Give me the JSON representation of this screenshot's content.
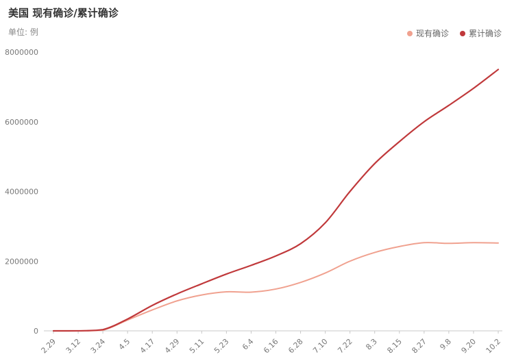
{
  "header": {
    "title": "美国 现有确诊/累计确诊",
    "unit": "单位: 例"
  },
  "chart_data": {
    "type": "line",
    "categories": [
      "2.29",
      "3.12",
      "3.24",
      "4.5",
      "4.17",
      "4.29",
      "5.11",
      "5.23",
      "6.4",
      "6.16",
      "6.28",
      "7.10",
      "7.22",
      "8.3",
      "8.15",
      "8.27",
      "9.8",
      "9.20",
      "10.2"
    ],
    "ylim": [
      0,
      8000000
    ],
    "y_ticks": [
      "0",
      "2000000",
      "4000000",
      "6000000",
      "8000000"
    ],
    "y_tick_values": [
      0,
      2000000,
      4000000,
      6000000,
      8000000
    ],
    "legend_position": "top-right",
    "grid": false,
    "series": [
      {
        "name": "现有确诊",
        "color": "#f0a18f",
        "values": [
          0,
          1000,
          20000,
          310000,
          600000,
          860000,
          1030000,
          1120000,
          1110000,
          1200000,
          1390000,
          1660000,
          2000000,
          2250000,
          2420000,
          2530000,
          2510000,
          2530000,
          2520000
        ]
      },
      {
        "name": "累计确诊",
        "color": "#c0393b",
        "values": [
          0,
          1500,
          35000,
          340000,
          730000,
          1060000,
          1350000,
          1630000,
          1880000,
          2150000,
          2500000,
          3100000,
          4000000,
          4800000,
          5430000,
          6000000,
          6470000,
          6960000,
          7500000
        ]
      }
    ]
  }
}
